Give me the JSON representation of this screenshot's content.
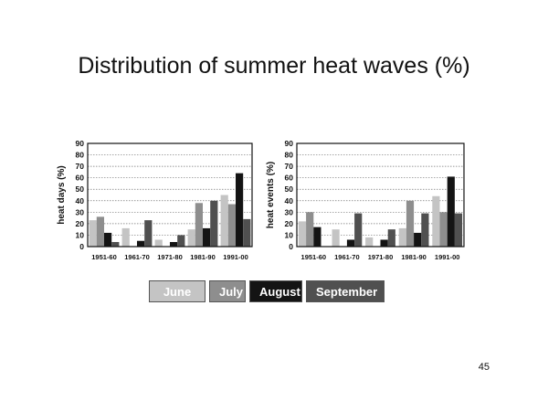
{
  "slide": {
    "title": "Distribution of summer heat waves (%)",
    "page_number": "45"
  },
  "legend": [
    {
      "label": "June",
      "color": "#c4c4c4"
    },
    {
      "label": "July",
      "color": "#8e8e8e"
    },
    {
      "label": "August",
      "color": "#141414"
    },
    {
      "label": "September",
      "color": "#505050"
    }
  ],
  "chart_data": [
    {
      "type": "bar",
      "title": "",
      "xlabel": "",
      "ylabel": "heat days (%)",
      "ylim": [
        0,
        90
      ],
      "yticks": [
        0,
        10,
        20,
        30,
        40,
        50,
        60,
        70,
        80,
        90
      ],
      "grid": true,
      "categories": [
        "1951-60",
        "1961-70",
        "1971-80",
        "1981-90",
        "1991-00"
      ],
      "series": [
        {
          "name": "June",
          "values": [
            23,
            16,
            6,
            15,
            45
          ]
        },
        {
          "name": "July",
          "values": [
            26,
            0,
            0,
            38,
            37
          ]
        },
        {
          "name": "August",
          "values": [
            12,
            5,
            4,
            16,
            64
          ]
        },
        {
          "name": "September",
          "values": [
            4,
            23,
            10,
            40,
            24
          ]
        }
      ]
    },
    {
      "type": "bar",
      "title": "",
      "xlabel": "",
      "ylabel": "heat events (%)",
      "ylim": [
        0,
        90
      ],
      "yticks": [
        0,
        10,
        20,
        30,
        40,
        50,
        60,
        70,
        80,
        90
      ],
      "grid": true,
      "categories": [
        "1951-60",
        "1961-70",
        "1971-80",
        "1981-90",
        "1991-00"
      ],
      "series": [
        {
          "name": "June",
          "values": [
            22,
            15,
            8,
            16,
            44
          ]
        },
        {
          "name": "July",
          "values": [
            30,
            0,
            0,
            40,
            30
          ]
        },
        {
          "name": "August",
          "values": [
            17,
            6,
            6,
            12,
            61
          ]
        },
        {
          "name": "September",
          "values": [
            0,
            29,
            15,
            29,
            29
          ]
        }
      ]
    }
  ]
}
